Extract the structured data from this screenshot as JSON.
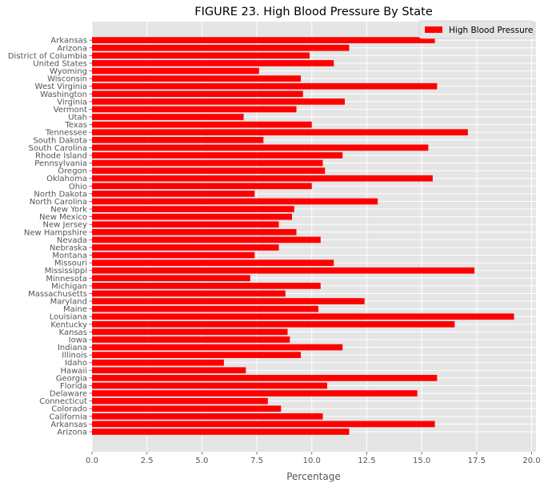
{
  "chart_data": {
    "type": "bar",
    "orientation": "horizontal",
    "title": "FIGURE 23. High Blood Pressure By State",
    "xlabel": "Percentage",
    "ylabel": "",
    "xlim": [
      0,
      20.2
    ],
    "xticks": [
      0.0,
      2.5,
      5.0,
      7.5,
      10.0,
      12.5,
      15.0,
      17.5,
      20.0
    ],
    "xtick_labels": [
      "0.0",
      "2.5",
      "5.0",
      "7.5",
      "10.0",
      "12.5",
      "15.0",
      "17.5",
      "20.0"
    ],
    "grid": true,
    "legend_position": "top-right",
    "bar_color": "#ff0000",
    "background_color": "#e5e5e5",
    "grid_color": "#ffffff",
    "series": [
      {
        "name": "High Blood Pressure",
        "categories": [
          "Arizona",
          "Arkansas",
          "California",
          "Colorado",
          "Connecticut",
          "Delaware",
          "Florida",
          "Georgia",
          "Hawaii",
          "Idaho",
          "Illinois",
          "Indiana",
          "Iowa",
          "Kansas",
          "Kentucky",
          "Louisiana",
          "Maine",
          "Maryland",
          "Massachusetts",
          "Michigan",
          "Minnesota",
          "Mississippi",
          "Missouri",
          "Montana",
          "Nebraska",
          "Nevada",
          "New Hampshire",
          "New Jersey",
          "New Mexico",
          "New York",
          "North Carolina",
          "North Dakota",
          "Ohio",
          "Oklahoma",
          "Oregon",
          "Pennsylvania",
          "Rhode Island",
          "South Carolina",
          "South Dakota",
          "Tennessee",
          "Texas",
          "Utah",
          "Vermont",
          "Virginia",
          "Washington",
          "West Virginia",
          "Wisconsin",
          "Wyoming",
          "United States",
          "District of Columbia",
          "Arizona",
          "Arkansas"
        ],
        "values": [
          11.7,
          15.6,
          10.5,
          8.6,
          8.0,
          14.8,
          10.7,
          15.7,
          7.0,
          6.0,
          9.5,
          11.4,
          9.0,
          8.9,
          16.5,
          19.2,
          10.3,
          12.4,
          8.8,
          10.4,
          7.2,
          17.4,
          11.0,
          7.4,
          8.5,
          10.4,
          9.3,
          8.5,
          9.1,
          9.2,
          13.0,
          7.4,
          10.0,
          15.5,
          10.6,
          10.5,
          11.4,
          15.3,
          7.8,
          17.1,
          10.0,
          6.9,
          9.3,
          11.5,
          9.6,
          15.7,
          9.5,
          7.6,
          11.0,
          9.9,
          11.7,
          15.6
        ]
      }
    ]
  }
}
